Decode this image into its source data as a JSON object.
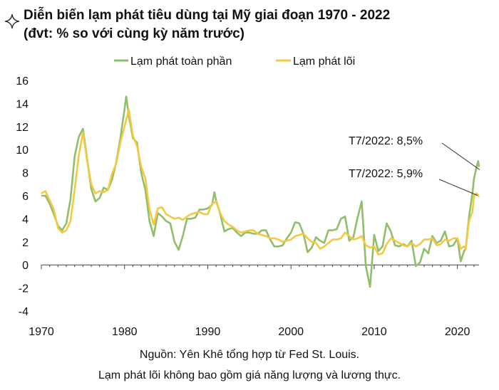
{
  "chart_data": {
    "type": "line",
    "title": "Diễn biến lạm phát tiêu dùng tại Mỹ giai đoạn 1970 - 2022",
    "subtitle": "(đvt: % so với cùng kỳ năm trước)",
    "x_ticks": [
      "1970",
      "1980",
      "1990",
      "2000",
      "2010",
      "2020"
    ],
    "y_ticks": [
      "16",
      "14",
      "12",
      "10",
      "8",
      "6",
      "4",
      "2",
      "0",
      "-2",
      "-4"
    ],
    "xlim": [
      1970,
      2022.6
    ],
    "ylim": [
      -4,
      16
    ],
    "grid": false,
    "legend_position": "top",
    "series": [
      {
        "name": "Lạm phát toàn phần",
        "color": "#8fbf6b",
        "x": [
          1970.0,
          1970.5,
          1971.0,
          1971.5,
          1972.0,
          1972.5,
          1973.0,
          1973.5,
          1974.0,
          1974.5,
          1975.0,
          1975.5,
          1976.0,
          1976.5,
          1977.0,
          1977.5,
          1978.0,
          1978.5,
          1979.0,
          1979.5,
          1980.0,
          1980.2,
          1980.5,
          1981.0,
          1981.5,
          1982.0,
          1982.5,
          1983.0,
          1983.5,
          1984.0,
          1984.5,
          1985.0,
          1985.5,
          1986.0,
          1986.5,
          1987.0,
          1987.5,
          1988.0,
          1988.5,
          1989.0,
          1989.5,
          1990.0,
          1990.5,
          1990.8,
          1991.0,
          1991.5,
          1992.0,
          1992.5,
          1993.0,
          1993.5,
          1994.0,
          1994.5,
          1995.0,
          1995.5,
          1996.0,
          1996.5,
          1997.0,
          1997.5,
          1998.0,
          1998.5,
          1999.0,
          1999.5,
          2000.0,
          2000.5,
          2001.0,
          2001.5,
          2002.0,
          2002.5,
          2003.0,
          2003.5,
          2004.0,
          2004.5,
          2005.0,
          2005.5,
          2006.0,
          2006.5,
          2007.0,
          2007.5,
          2008.0,
          2008.5,
          2009.0,
          2009.5,
          2010.0,
          2010.5,
          2011.0,
          2011.5,
          2012.0,
          2012.5,
          2013.0,
          2013.5,
          2014.0,
          2014.5,
          2015.0,
          2015.5,
          2016.0,
          2016.5,
          2017.0,
          2017.5,
          2018.0,
          2018.5,
          2019.0,
          2019.5,
          2020.0,
          2020.4,
          2020.8,
          2021.0,
          2021.4,
          2021.8,
          2022.0,
          2022.3,
          2022.5,
          2022.6
        ],
        "values": [
          6.0,
          6.0,
          5.3,
          4.4,
          3.4,
          3.0,
          3.6,
          5.7,
          9.4,
          11.1,
          11.8,
          9.2,
          6.6,
          5.5,
          5.8,
          6.7,
          6.5,
          7.4,
          8.9,
          11.0,
          13.5,
          14.6,
          13.0,
          11.0,
          10.6,
          8.0,
          6.5,
          3.8,
          2.5,
          4.5,
          4.2,
          3.8,
          3.6,
          2.0,
          1.3,
          2.5,
          4.0,
          4.0,
          4.1,
          4.8,
          4.8,
          4.9,
          5.2,
          6.3,
          5.6,
          4.4,
          2.9,
          3.1,
          3.2,
          2.8,
          2.5,
          2.8,
          2.8,
          2.7,
          2.7,
          3.0,
          3.0,
          2.2,
          1.6,
          1.6,
          1.7,
          2.3,
          2.8,
          3.7,
          3.6,
          2.7,
          1.1,
          1.5,
          2.4,
          2.1,
          1.9,
          3.0,
          3.0,
          3.1,
          4.0,
          4.2,
          2.1,
          2.4,
          4.1,
          5.5,
          -0.1,
          -1.9,
          2.6,
          1.2,
          1.6,
          3.6,
          2.9,
          1.7,
          1.6,
          1.8,
          1.6,
          2.1,
          -0.1,
          0.2,
          1.4,
          1.0,
          2.5,
          1.9,
          2.1,
          2.9,
          1.6,
          1.7,
          2.3,
          0.3,
          1.2,
          1.4,
          4.2,
          6.2,
          7.5,
          8.5,
          9.0,
          8.5
        ]
      },
      {
        "name": "Lạm phát lõi",
        "color": "#f5c842",
        "x": [
          1970.0,
          1970.5,
          1971.0,
          1971.5,
          1972.0,
          1972.5,
          1973.0,
          1973.5,
          1974.0,
          1974.5,
          1975.0,
          1975.5,
          1976.0,
          1976.5,
          1977.0,
          1977.5,
          1978.0,
          1978.5,
          1979.0,
          1979.5,
          1980.0,
          1980.5,
          1981.0,
          1981.5,
          1982.0,
          1982.5,
          1983.0,
          1983.5,
          1984.0,
          1984.5,
          1985.0,
          1985.5,
          1986.0,
          1986.5,
          1987.0,
          1987.5,
          1988.0,
          1988.5,
          1989.0,
          1989.5,
          1990.0,
          1990.5,
          1991.0,
          1991.5,
          1992.0,
          1992.5,
          1993.0,
          1993.5,
          1994.0,
          1994.5,
          1995.0,
          1995.5,
          1996.0,
          1996.5,
          1997.0,
          1997.5,
          1998.0,
          1998.5,
          1999.0,
          1999.5,
          2000.0,
          2000.5,
          2001.0,
          2001.5,
          2002.0,
          2002.5,
          2003.0,
          2003.5,
          2004.0,
          2004.5,
          2005.0,
          2005.5,
          2006.0,
          2006.5,
          2007.0,
          2007.5,
          2008.0,
          2008.5,
          2009.0,
          2009.5,
          2010.0,
          2010.5,
          2011.0,
          2011.5,
          2012.0,
          2012.5,
          2013.0,
          2013.5,
          2014.0,
          2014.5,
          2015.0,
          2015.5,
          2016.0,
          2016.5,
          2017.0,
          2017.5,
          2018.0,
          2018.5,
          2019.0,
          2019.5,
          2020.0,
          2020.4,
          2020.8,
          2021.0,
          2021.4,
          2021.8,
          2022.0,
          2022.3,
          2022.6
        ],
        "values": [
          6.2,
          6.4,
          5.6,
          4.8,
          3.2,
          2.8,
          3.0,
          3.8,
          6.5,
          9.5,
          11.5,
          9.0,
          7.0,
          6.2,
          6.4,
          6.3,
          6.5,
          7.9,
          8.8,
          10.6,
          12.0,
          13.5,
          11.2,
          10.3,
          8.5,
          7.5,
          4.8,
          3.5,
          4.9,
          5.0,
          4.4,
          4.2,
          4.0,
          4.1,
          3.9,
          4.2,
          4.4,
          4.5,
          4.6,
          4.4,
          4.4,
          5.3,
          5.5,
          4.5,
          3.8,
          3.5,
          3.3,
          3.0,
          2.8,
          2.9,
          3.0,
          3.0,
          2.7,
          2.6,
          2.5,
          2.3,
          2.3,
          2.2,
          2.0,
          2.1,
          2.2,
          2.5,
          2.6,
          2.7,
          2.3,
          2.0,
          1.9,
          1.4,
          1.6,
          1.9,
          2.2,
          2.2,
          2.3,
          2.8,
          2.5,
          2.2,
          2.3,
          2.5,
          1.7,
          1.5,
          1.6,
          0.9,
          1.0,
          1.8,
          2.3,
          2.1,
          1.9,
          1.7,
          1.6,
          1.9,
          1.6,
          1.8,
          2.2,
          2.2,
          2.3,
          1.7,
          1.8,
          2.2,
          2.1,
          2.3,
          2.3,
          1.4,
          1.6,
          1.4,
          3.8,
          4.6,
          6.0,
          6.2,
          5.9
        ]
      }
    ],
    "annotations": [
      {
        "text": "T7/2022: 8,5%",
        "x": 2022.5,
        "y": 8.5
      },
      {
        "text": "T7/2022: 5,9%",
        "x": 2022.6,
        "y": 5.9
      }
    ]
  },
  "footer": {
    "source": "Nguồn: Yên Khê tổng hợp từ Fed St. Louis.",
    "note": "Lạm phát lõi không bao gồm giá năng lượng và lương thực."
  },
  "icon": "sparkle-icon"
}
